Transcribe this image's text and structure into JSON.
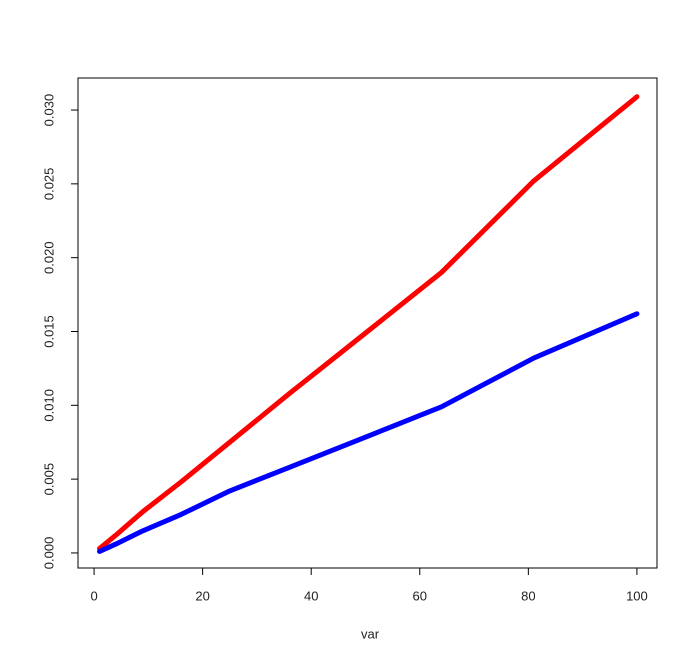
{
  "chart_data": {
    "type": "line",
    "xlabel": "var",
    "x": [
      1,
      4,
      9,
      16,
      25,
      36,
      49,
      64,
      81,
      100
    ],
    "series": [
      {
        "color": "#ff0000",
        "values": [
          0.0003,
          0.0012,
          0.0028,
          0.0048,
          0.0075,
          0.0108,
          0.0146,
          0.019,
          0.0252,
          0.0309
        ]
      },
      {
        "color": "#0000ff",
        "values": [
          0.0001,
          0.0006,
          0.0015,
          0.0026,
          0.0042,
          0.0058,
          0.0077,
          0.0099,
          0.0132,
          0.0162
        ]
      }
    ],
    "xlim": [
      -2.96,
      103.7
    ],
    "xticks": [
      0,
      20,
      40,
      60,
      80,
      100
    ],
    "ylim": [
      -0.00102,
      0.03217
    ],
    "yticks": [
      {
        "value": 0,
        "label": "0.000"
      },
      {
        "value": 0.005,
        "label": "0.005"
      },
      {
        "value": 0.01,
        "label": "0.010"
      },
      {
        "value": 0.015,
        "label": "0.015"
      },
      {
        "value": 0.02,
        "label": "0.020"
      },
      {
        "value": 0.025,
        "label": "0.025"
      },
      {
        "value": 0.03,
        "label": "0.030"
      }
    ]
  }
}
